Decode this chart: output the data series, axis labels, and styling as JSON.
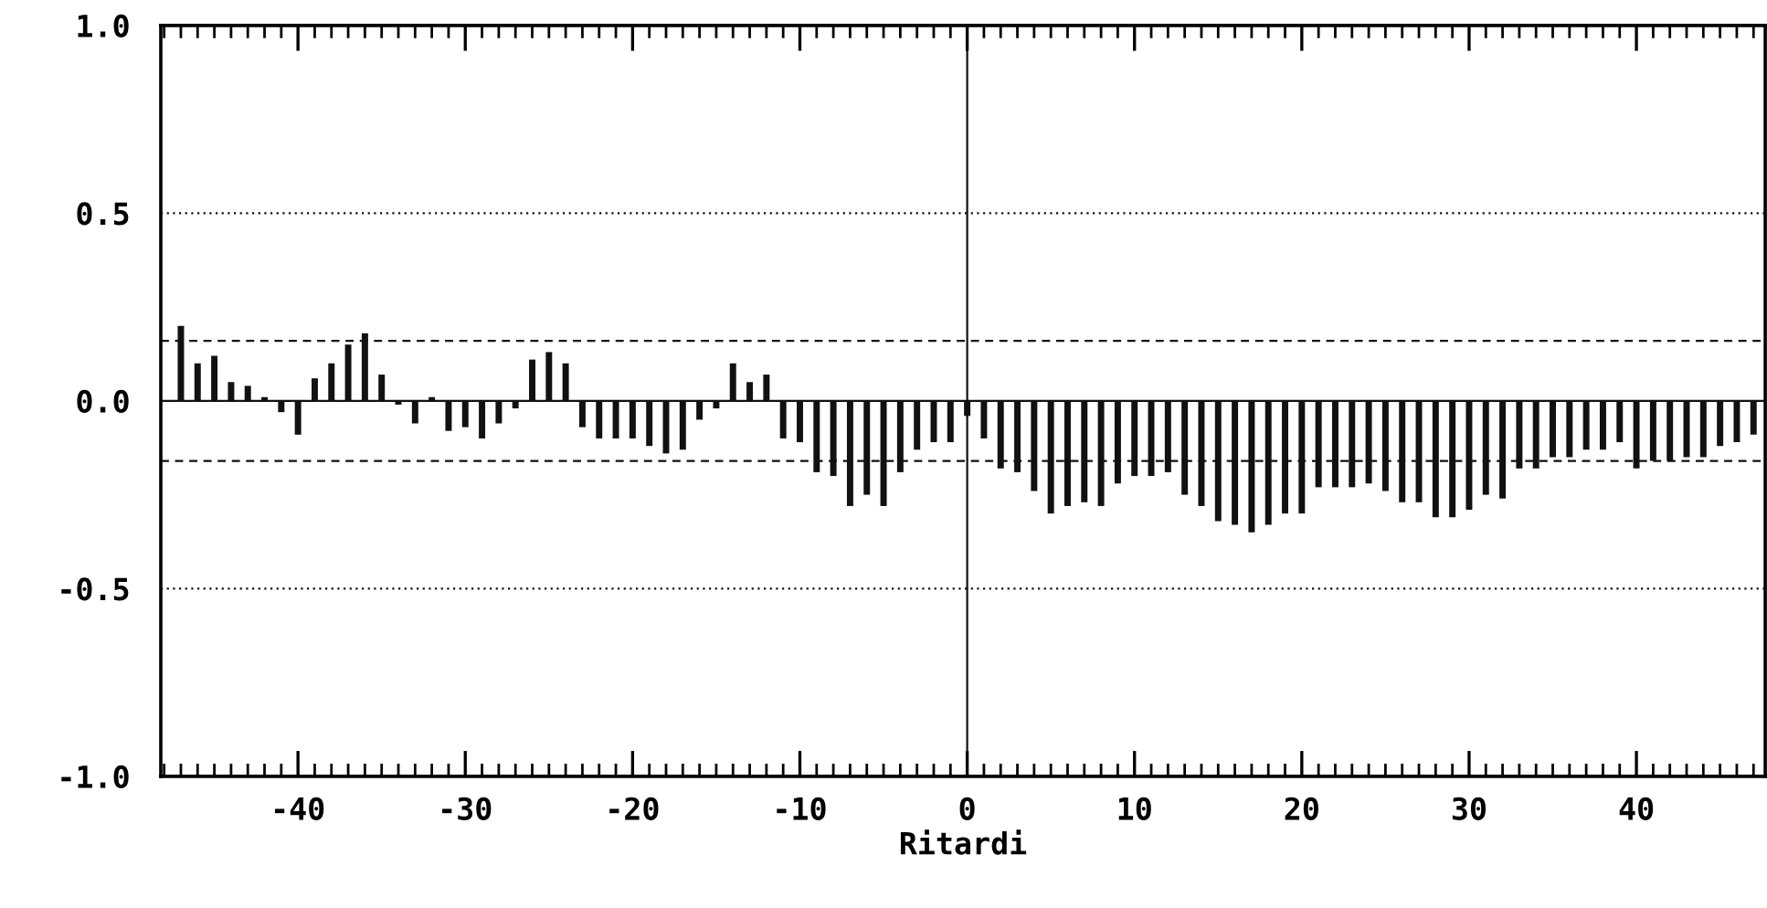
{
  "chart_data": {
    "type": "bar",
    "xlabel": "Ritardi",
    "x": [
      -47,
      -46,
      -45,
      -44,
      -43,
      -42,
      -41,
      -40,
      -39,
      -38,
      -37,
      -36,
      -35,
      -34,
      -33,
      -32,
      -31,
      -30,
      -29,
      -28,
      -27,
      -26,
      -25,
      -24,
      -23,
      -22,
      -21,
      -20,
      -19,
      -18,
      -17,
      -16,
      -15,
      -14,
      -13,
      -12,
      -11,
      -10,
      -9,
      -8,
      -7,
      -6,
      -5,
      -4,
      -3,
      -2,
      -1,
      0,
      1,
      2,
      3,
      4,
      5,
      6,
      7,
      8,
      9,
      10,
      11,
      12,
      13,
      14,
      15,
      16,
      17,
      18,
      19,
      20,
      21,
      22,
      23,
      24,
      25,
      26,
      27,
      28,
      29,
      30,
      31,
      32,
      33,
      34,
      35,
      36,
      37,
      38,
      39,
      40,
      41,
      42,
      43,
      44,
      45,
      46,
      47
    ],
    "values": [
      0.2,
      0.1,
      0.12,
      0.05,
      0.04,
      0.01,
      -0.03,
      -0.09,
      0.06,
      0.1,
      0.15,
      0.18,
      0.07,
      -0.01,
      -0.06,
      0.01,
      -0.08,
      -0.07,
      -0.1,
      -0.06,
      -0.02,
      0.11,
      0.13,
      0.1,
      -0.07,
      -0.1,
      -0.1,
      -0.1,
      -0.12,
      -0.14,
      -0.13,
      -0.05,
      -0.02,
      0.1,
      0.05,
      0.07,
      -0.1,
      -0.11,
      -0.19,
      -0.2,
      -0.28,
      -0.25,
      -0.28,
      -0.19,
      -0.13,
      -0.11,
      -0.11,
      -0.04,
      -0.1,
      -0.18,
      -0.19,
      -0.24,
      -0.3,
      -0.28,
      -0.27,
      -0.28,
      -0.22,
      -0.2,
      -0.2,
      -0.19,
      -0.25,
      -0.28,
      -0.32,
      -0.33,
      -0.35,
      -0.33,
      -0.3,
      -0.3,
      -0.23,
      -0.23,
      -0.23,
      -0.22,
      -0.24,
      -0.27,
      -0.27,
      -0.31,
      -0.31,
      -0.29,
      -0.25,
      -0.26,
      -0.18,
      -0.18,
      -0.15,
      -0.15,
      -0.13,
      -0.13,
      -0.11,
      -0.18,
      -0.16,
      -0.16,
      -0.15,
      -0.15,
      -0.12,
      -0.11,
      -0.09
    ],
    "color": "#111111",
    "xlim": [
      -48.2,
      47.7
    ],
    "xticks": [
      -40,
      -30,
      -20,
      -10,
      0,
      10,
      20,
      30,
      40
    ],
    "ylim": [
      -1.0,
      1.0
    ],
    "yticks": [
      {
        "value": 1.0,
        "label": "1.0"
      },
      {
        "value": 0.5,
        "label": "0.5"
      },
      {
        "value": 0.0,
        "label": "0.0"
      },
      {
        "value": -0.5,
        "label": "-0.5"
      },
      {
        "value": -1.0,
        "label": "-1.0"
      }
    ],
    "ref_lines": [
      {
        "axis": "x",
        "value": 0,
        "line_style": "solid",
        "color": "#111111"
      },
      {
        "axis": "y",
        "value": 0.5,
        "line_style": "dotted",
        "color": "#111111"
      },
      {
        "axis": "y",
        "value": -0.5,
        "line_style": "dotted",
        "color": "#111111"
      },
      {
        "axis": "y",
        "value": 0.16,
        "line_style": "dashed",
        "color": "#111111"
      },
      {
        "axis": "y",
        "value": -0.16,
        "line_style": "dashed",
        "color": "#111111"
      },
      {
        "axis": "y",
        "value": 0,
        "line_style": "solid",
        "color": "#111111"
      }
    ],
    "grid": false,
    "legend": false
  }
}
